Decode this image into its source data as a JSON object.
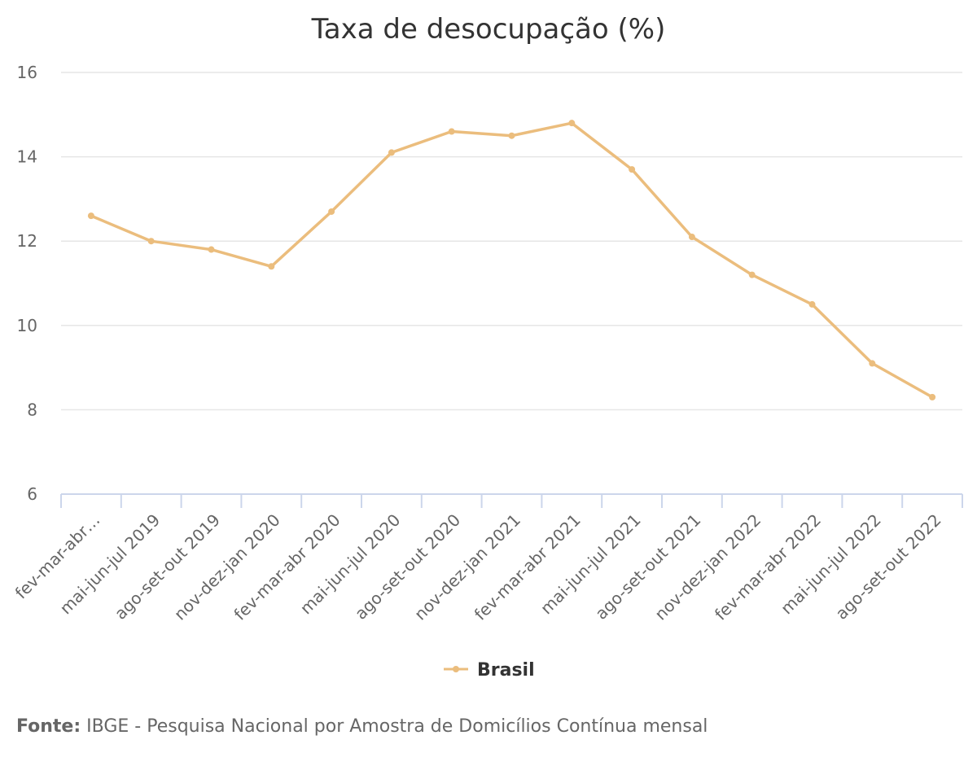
{
  "chart_data": {
    "type": "line",
    "title": "Taxa de desocupação (%)",
    "xlabel": "",
    "ylabel": "",
    "categories": [
      "fev-mar-abr…",
      "mai-jun-jul 2019",
      "ago-set-out 2019",
      "nov-dez-jan 2020",
      "fev-mar-abr 2020",
      "mai-jun-jul 2020",
      "ago-set-out 2020",
      "nov-dez-jan 2021",
      "fev-mar-abr 2021",
      "mai-jun-jul 2021",
      "ago-set-out 2021",
      "nov-dez-jan 2022",
      "fev-mar-abr 2022",
      "mai-jun-jul 2022",
      "ago-set-out 2022"
    ],
    "series": [
      {
        "name": "Brasil",
        "values": [
          12.6,
          12.0,
          11.8,
          11.4,
          12.7,
          14.1,
          14.6,
          14.5,
          14.8,
          13.7,
          12.1,
          11.2,
          10.5,
          9.1,
          8.3
        ],
        "color": "#ebbd7d"
      }
    ],
    "ylim": [
      6,
      16
    ],
    "yticks": [
      "6",
      "8",
      "10",
      "12",
      "14",
      "16"
    ],
    "grid": true,
    "legend_position": "bottom-center",
    "colors": {
      "grid": "#e6e6e6",
      "axis": "#ccd6eb",
      "text": "#666666",
      "title": "#333333"
    }
  },
  "source": {
    "label": "Fonte:",
    "text": " IBGE - Pesquisa Nacional por Amostra de Domicílios Contínua mensal"
  }
}
